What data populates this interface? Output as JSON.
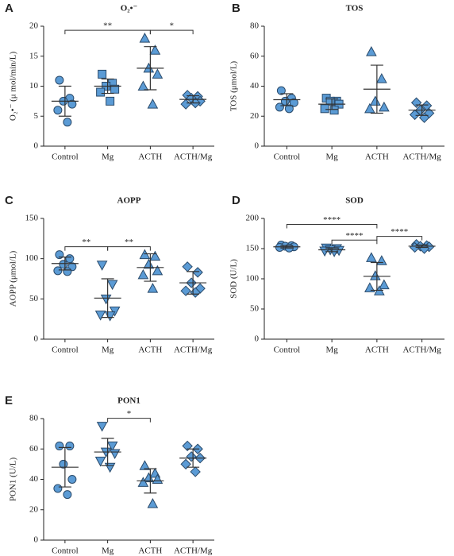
{
  "chart_data": [
    {
      "type": "dot",
      "panel_label": "A",
      "title": "O₂•⁻",
      "ylabel": "O₂•⁻ (μ mol/min/L)",
      "categories": [
        "Control",
        "Mg",
        "ACTH",
        "ACTH/Mg"
      ],
      "markers": [
        "circle",
        "square",
        "triangle-up",
        "diamond"
      ],
      "points": [
        [
          11,
          8,
          7.5,
          7,
          6,
          4
        ],
        [
          12,
          10.5,
          10,
          9.5,
          9,
          7.5
        ],
        [
          18,
          16,
          13,
          12,
          10,
          7
        ],
        [
          8.5,
          8.3,
          8,
          7.5,
          7,
          7.2
        ]
      ],
      "means": [
        7.5,
        10,
        13,
        7.8
      ],
      "sds": [
        2.5,
        1.2,
        3.6,
        0.6
      ],
      "comparisons": [
        {
          "groups": [
            0,
            2
          ],
          "label": "**"
        },
        {
          "groups": [
            2,
            3
          ],
          "label": "*"
        }
      ],
      "ylim": [
        0,
        20
      ],
      "yticks": [
        0,
        5,
        10,
        15,
        20
      ],
      "color": "#5b9bd5"
    },
    {
      "type": "dot",
      "panel_label": "B",
      "title": "TOS",
      "ylabel": "TOS (μmol/L)",
      "categories": [
        "Control",
        "Mg",
        "ACTH",
        "ACTH/Mg"
      ],
      "markers": [
        "circle",
        "square",
        "triangle-up",
        "diamond"
      ],
      "points": [
        [
          37,
          32,
          30,
          29,
          26,
          25
        ],
        [
          32,
          30,
          30,
          28,
          25,
          24
        ],
        [
          63,
          45,
          30,
          26,
          25
        ],
        [
          29,
          27,
          24,
          22,
          21,
          19
        ]
      ],
      "means": [
        31,
        28,
        38,
        24
      ],
      "sds": [
        4,
        3.5,
        16,
        3.5
      ],
      "comparisons": [],
      "ylim": [
        0,
        80
      ],
      "yticks": [
        0,
        20,
        40,
        60,
        80
      ],
      "color": "#5b9bd5"
    },
    {
      "type": "dot",
      "panel_label": "C",
      "title": "AOPP",
      "ylabel": "AOPP (μmol/L)",
      "categories": [
        "Control",
        "Mg",
        "ACTH",
        "ACTH/Mg"
      ],
      "markers": [
        "circle",
        "triangle-down",
        "triangle-up",
        "diamond"
      ],
      "points": [
        [
          105,
          100,
          93,
          90,
          85,
          84
        ],
        [
          92,
          68,
          50,
          35,
          30,
          29
        ],
        [
          105,
          103,
          93,
          85,
          80,
          63
        ],
        [
          90,
          83,
          70,
          63,
          60,
          58
        ]
      ],
      "means": [
        94,
        51,
        89,
        70
      ],
      "sds": [
        8,
        24,
        17,
        14
      ],
      "comparisons": [
        {
          "groups": [
            0,
            1
          ],
          "label": "**"
        },
        {
          "groups": [
            1,
            2
          ],
          "label": "**"
        }
      ],
      "ylim": [
        0,
        150
      ],
      "yticks": [
        0,
        50,
        100,
        150
      ],
      "color": "#5b9bd5"
    },
    {
      "type": "dot",
      "panel_label": "D",
      "title": "SOD",
      "ylabel": "SOD (U/L)",
      "categories": [
        "Control",
        "Mg",
        "ACTH",
        "ACTH/Mg"
      ],
      "markers": [
        "circle",
        "triangle-down",
        "triangle-up",
        "diamond"
      ],
      "points": [
        [
          156,
          155,
          154,
          153,
          152,
          151
        ],
        [
          151,
          150,
          148,
          147,
          146,
          145
        ],
        [
          135,
          130,
          105,
          90,
          85,
          80
        ],
        [
          157,
          155,
          154,
          153,
          152,
          150
        ]
      ],
      "means": [
        153,
        148,
        104,
        154
      ],
      "sds": [
        2,
        3,
        23,
        2
      ],
      "comparisons": [
        {
          "groups": [
            1,
            2
          ],
          "label": "****"
        },
        {
          "groups": [
            2,
            3
          ],
          "label": "****"
        },
        {
          "groups": [
            0,
            2
          ],
          "label": "****"
        }
      ],
      "ylim": [
        0,
        200
      ],
      "yticks": [
        0,
        50,
        100,
        150,
        200
      ],
      "color": "#5b9bd5"
    },
    {
      "type": "dot",
      "panel_label": "E",
      "title": "PON1",
      "ylabel": "PON1 (U/L)",
      "categories": [
        "Control",
        "Mg",
        "ACTH",
        "ACTH/Mg"
      ],
      "markers": [
        "circle",
        "triangle-down",
        "triangle-up",
        "diamond"
      ],
      "points": [
        [
          62,
          62,
          50,
          40,
          34,
          30
        ],
        [
          75,
          62,
          58,
          57,
          52,
          48
        ],
        [
          49,
          44,
          41,
          40,
          38,
          24
        ],
        [
          62,
          60,
          55,
          54,
          50,
          45
        ]
      ],
      "means": [
        48,
        58,
        39,
        54
      ],
      "sds": [
        13,
        9,
        8,
        6
      ],
      "comparisons": [
        {
          "groups": [
            1,
            2
          ],
          "label": "*"
        }
      ],
      "ylim": [
        0,
        80
      ],
      "yticks": [
        0,
        20,
        40,
        60,
        80
      ],
      "color": "#5b9bd5"
    }
  ]
}
